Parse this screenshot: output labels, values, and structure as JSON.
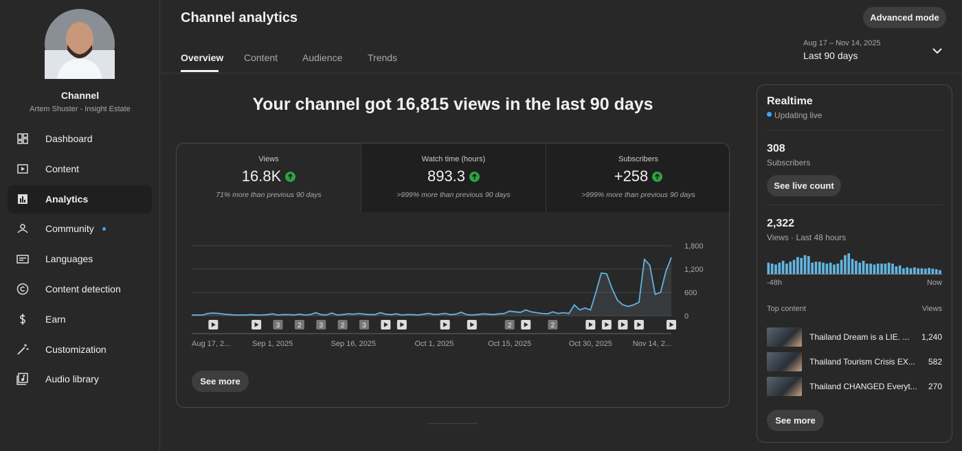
{
  "sidebar": {
    "channel_label": "Channel",
    "channel_name": "Artem Shuster - Insight Estate",
    "nav": [
      "Dashboard",
      "Content",
      "Analytics",
      "Community",
      "Languages",
      "Content detection",
      "Earn",
      "Customization",
      "Audio library"
    ]
  },
  "header": {
    "title": "Channel analytics",
    "advanced_button": "Advanced mode",
    "tabs": [
      "Overview",
      "Content",
      "Audience",
      "Trends"
    ],
    "date_range": "Aug 17 – Nov 14, 2025",
    "period": "Last 90 days"
  },
  "headline": "Your channel got 16,815 views in the last 90 days",
  "metrics": [
    {
      "label": "Views",
      "value": "16.8K",
      "comparison": "71% more than previous 90 days"
    },
    {
      "label": "Watch time (hours)",
      "value": "893.3",
      "comparison": ">999% more than previous 90 days"
    },
    {
      "label": "Subscribers",
      "value": "+258",
      "comparison": ">999% more than previous 90 days"
    }
  ],
  "chart_data": {
    "type": "line",
    "color": "#62b4e0",
    "grid": true,
    "categories": [
      "Aug 17, 2...",
      null,
      null,
      null,
      null,
      null,
      null,
      null,
      null,
      null,
      null,
      null,
      null,
      null,
      null,
      "Sep 1, 2025",
      null,
      null,
      null,
      null,
      null,
      null,
      null,
      null,
      null,
      null,
      null,
      null,
      null,
      null,
      "Sep 16, 2025",
      null,
      null,
      null,
      null,
      null,
      null,
      null,
      null,
      null,
      null,
      null,
      null,
      null,
      null,
      "Oct 1, 2025",
      null,
      null,
      null,
      null,
      null,
      null,
      null,
      null,
      null,
      null,
      null,
      null,
      null,
      "Oct 15, 2025",
      null,
      null,
      null,
      null,
      null,
      null,
      null,
      null,
      null,
      null,
      null,
      null,
      null,
      null,
      "Oct 30, 2025",
      null,
      null,
      null,
      null,
      null,
      null,
      null,
      null,
      null,
      null,
      null,
      null,
      null,
      null,
      "Nov 14, 2..."
    ],
    "values": [
      20,
      20,
      20,
      60,
      70,
      60,
      40,
      30,
      20,
      20,
      20,
      30,
      20,
      20,
      30,
      50,
      20,
      30,
      30,
      20,
      40,
      20,
      30,
      80,
      30,
      20,
      70,
      20,
      30,
      50,
      40,
      60,
      40,
      30,
      30,
      80,
      40,
      30,
      50,
      20,
      30,
      30,
      20,
      40,
      60,
      30,
      40,
      60,
      30,
      40,
      90,
      30,
      20,
      30,
      50,
      40,
      30,
      50,
      60,
      120,
      100,
      90,
      150,
      100,
      80,
      60,
      50,
      100,
      60,
      80,
      60,
      280,
      150,
      200,
      150,
      600,
      1100,
      1080,
      700,
      400,
      280,
      240,
      280,
      350,
      1450,
      1300,
      550,
      600,
      1150,
      1500
    ],
    "ylim": [
      0,
      1800
    ],
    "yticks": [
      0,
      600,
      {
        "value": 1200,
        "label": "1,200"
      },
      {
        "value": 1800,
        "label": "1,800"
      }
    ],
    "markers": [
      {
        "day": 4
      },
      {
        "day": 12
      },
      {
        "day": 16,
        "count": "3"
      },
      {
        "day": 20,
        "count": "2"
      },
      {
        "day": 24,
        "count": "3"
      },
      {
        "day": 28,
        "count": "2"
      },
      {
        "day": 32,
        "count": "3"
      },
      {
        "day": 36
      },
      {
        "day": 39
      },
      {
        "day": 47
      },
      {
        "day": 52
      },
      {
        "day": 59,
        "count": "2"
      },
      {
        "day": 62
      },
      {
        "day": 67,
        "count": "2"
      },
      {
        "day": 74
      },
      {
        "day": 77
      },
      {
        "day": 80
      },
      {
        "day": 83
      },
      {
        "day": 89
      }
    ]
  },
  "see_more": "See more",
  "realtime": {
    "title": "Realtime",
    "status": "Updating live",
    "subscribers": "308",
    "subscribers_label": "Subscribers",
    "live_count_button": "See live count",
    "views": "2,322",
    "views_label": "Views · Last 48 hours",
    "bars": {
      "type": "bar",
      "color": "#62b4e0",
      "values": [
        60,
        55,
        50,
        60,
        70,
        55,
        65,
        75,
        90,
        85,
        100,
        95,
        60,
        65,
        65,
        60,
        55,
        60,
        50,
        55,
        75,
        100,
        110,
        80,
        70,
        60,
        70,
        55,
        55,
        50,
        55,
        55,
        55,
        60,
        55,
        40,
        45,
        30,
        35,
        30,
        35,
        30,
        30,
        28,
        32,
        28,
        25,
        20
      ],
      "start_label": "-48h",
      "end_label": "Now"
    },
    "top_content_label": "Top content",
    "views_header": "Views",
    "top_content": [
      {
        "title": "Thailand Dream is a LIE. ...",
        "views": "1,240"
      },
      {
        "title": "Thailand Tourism Crisis EX...",
        "views": "582"
      },
      {
        "title": "Thailand CHANGED Everyt...",
        "views": "270"
      }
    ],
    "see_more": "See more"
  }
}
